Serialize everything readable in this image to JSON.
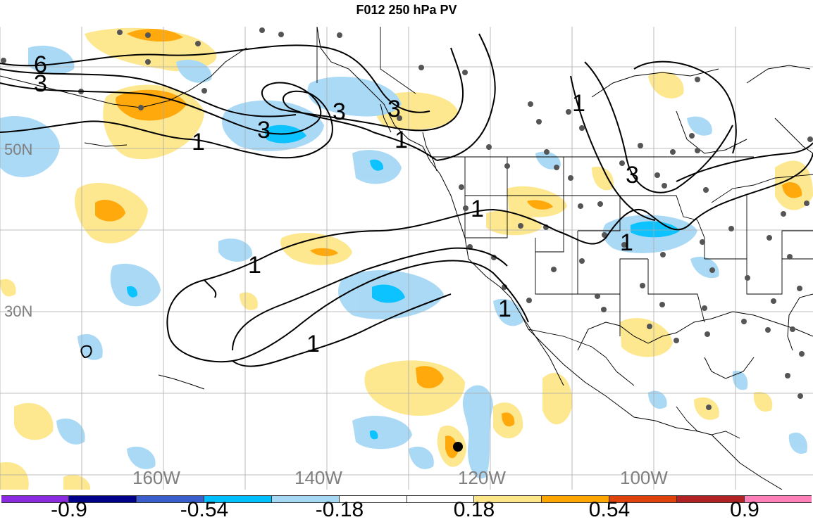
{
  "title": "F012 250 hPa PV",
  "map": {
    "lat_labels": [
      {
        "id": "lat-50n",
        "text": "50N"
      },
      {
        "id": "lat-30n",
        "text": "30N"
      }
    ],
    "lon_labels": [
      {
        "id": "lon-160w",
        "text": "160W"
      },
      {
        "id": "lon-140w",
        "text": "140W"
      },
      {
        "id": "lon-120w",
        "text": "120W"
      },
      {
        "id": "lon-100w",
        "text": "100W"
      }
    ],
    "contour_labels": [
      "6",
      "3",
      "3",
      "3",
      "3",
      "1",
      "1",
      "1",
      "1",
      "1",
      "1",
      "1",
      "3",
      "1"
    ]
  },
  "colorbar": {
    "colors": [
      "#8a2be2",
      "#00008b",
      "#3a5fcd",
      "#00bfff",
      "#a6d8f5",
      "#ffffff",
      "#ffffff",
      "#fde68a",
      "#ffa500",
      "#e0420b",
      "#b22222",
      "#ff7fb8"
    ],
    "labels": [
      "-0.9",
      "-0.54",
      "-0.18",
      "0.18",
      "0.54",
      "0.9"
    ]
  }
}
